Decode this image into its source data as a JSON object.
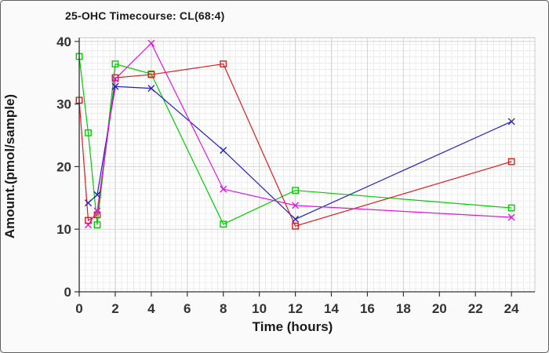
{
  "window": {
    "background": "#fafafa",
    "border_color": "#5f5f5f"
  },
  "chart_data": {
    "type": "line",
    "title": "25-OHC Timecourse: CL(68:4)",
    "xlabel": "Time (hours)",
    "ylabel": "Amount.(pmol/sample)",
    "xlim": [
      0,
      25.3
    ],
    "ylim": [
      0,
      40.6
    ],
    "x_ticks": [
      0,
      2,
      4,
      6,
      8,
      10,
      12,
      14,
      16,
      18,
      20,
      22,
      24
    ],
    "y_ticks": [
      0,
      10,
      20,
      30,
      40
    ],
    "grid": {
      "major": true,
      "minor_mesh": true,
      "major_color": "#d4d4d4",
      "minor_color": "#ececec"
    },
    "axis_color": "#333333",
    "frame_color": "#cccccc",
    "text_color": "#1a1a1a",
    "legend": "none",
    "series": [
      {
        "name": "green-squares",
        "color": "#00cc00",
        "marker": "open-square",
        "points": [
          [
            0,
            37.6
          ],
          [
            0.5,
            25.4
          ],
          [
            1,
            10.7
          ],
          [
            2,
            36.4
          ],
          [
            4,
            34.8
          ],
          [
            8,
            10.8
          ],
          [
            12,
            16.2
          ],
          [
            24,
            13.4
          ]
        ]
      },
      {
        "name": "red-squares",
        "color": "#dd1c1c",
        "marker": "open-square",
        "points": [
          [
            0,
            30.6
          ],
          [
            0.5,
            11.4
          ],
          [
            1,
            12.3
          ],
          [
            2,
            34.2
          ],
          [
            4,
            34.7
          ],
          [
            8,
            36.4
          ],
          [
            12,
            10.5
          ],
          [
            24,
            20.8
          ]
        ]
      },
      {
        "name": "blue-crosses",
        "color": "#2222bb",
        "marker": "x-cross",
        "points": [
          [
            0.5,
            14.2
          ],
          [
            1,
            15.5
          ],
          [
            2,
            32.8
          ],
          [
            4,
            32.5
          ],
          [
            8,
            22.6
          ],
          [
            12,
            11.6
          ],
          [
            24,
            27.2
          ]
        ]
      },
      {
        "name": "magenta-crosses",
        "color": "#e214e2",
        "marker": "x-cross",
        "points": [
          [
            0.5,
            10.7
          ],
          [
            1,
            12.9
          ],
          [
            2,
            34.0
          ],
          [
            4,
            39.7
          ],
          [
            8,
            16.4
          ],
          [
            12,
            13.8
          ],
          [
            24,
            11.9
          ]
        ]
      }
    ]
  }
}
